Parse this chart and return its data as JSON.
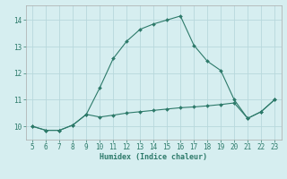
{
  "xlabel": "Humidex (Indice chaleur)",
  "x_upper": [
    5,
    6,
    7,
    8,
    9,
    10,
    11,
    12,
    13,
    14,
    15,
    16,
    17,
    18,
    19,
    20,
    21,
    22,
    23
  ],
  "y_upper": [
    10.0,
    9.85,
    9.85,
    10.05,
    10.45,
    11.45,
    12.55,
    13.2,
    13.65,
    13.85,
    14.0,
    14.15,
    13.05,
    12.45,
    12.1,
    11.0,
    10.3,
    10.55,
    11.0
  ],
  "x_lower": [
    5,
    6,
    7,
    8,
    9,
    10,
    11,
    12,
    13,
    14,
    15,
    16,
    17,
    18,
    19,
    20,
    21,
    22,
    23
  ],
  "y_lower": [
    10.0,
    9.85,
    9.85,
    10.05,
    10.45,
    10.35,
    10.42,
    10.5,
    10.55,
    10.6,
    10.65,
    10.7,
    10.73,
    10.77,
    10.82,
    10.88,
    10.3,
    10.55,
    11.0
  ],
  "line_color": "#2d7a6a",
  "bg_color": "#d6eef0",
  "grid_color": "#b8d8dc",
  "ylim": [
    9.5,
    14.55
  ],
  "xlim": [
    4.5,
    23.5
  ],
  "yticks": [
    10,
    11,
    12,
    13,
    14
  ],
  "xticks": [
    5,
    6,
    7,
    8,
    9,
    10,
    11,
    12,
    13,
    14,
    15,
    16,
    17,
    18,
    19,
    20,
    21,
    22,
    23
  ],
  "tick_fontsize": 5.5,
  "xlabel_fontsize": 6.0
}
